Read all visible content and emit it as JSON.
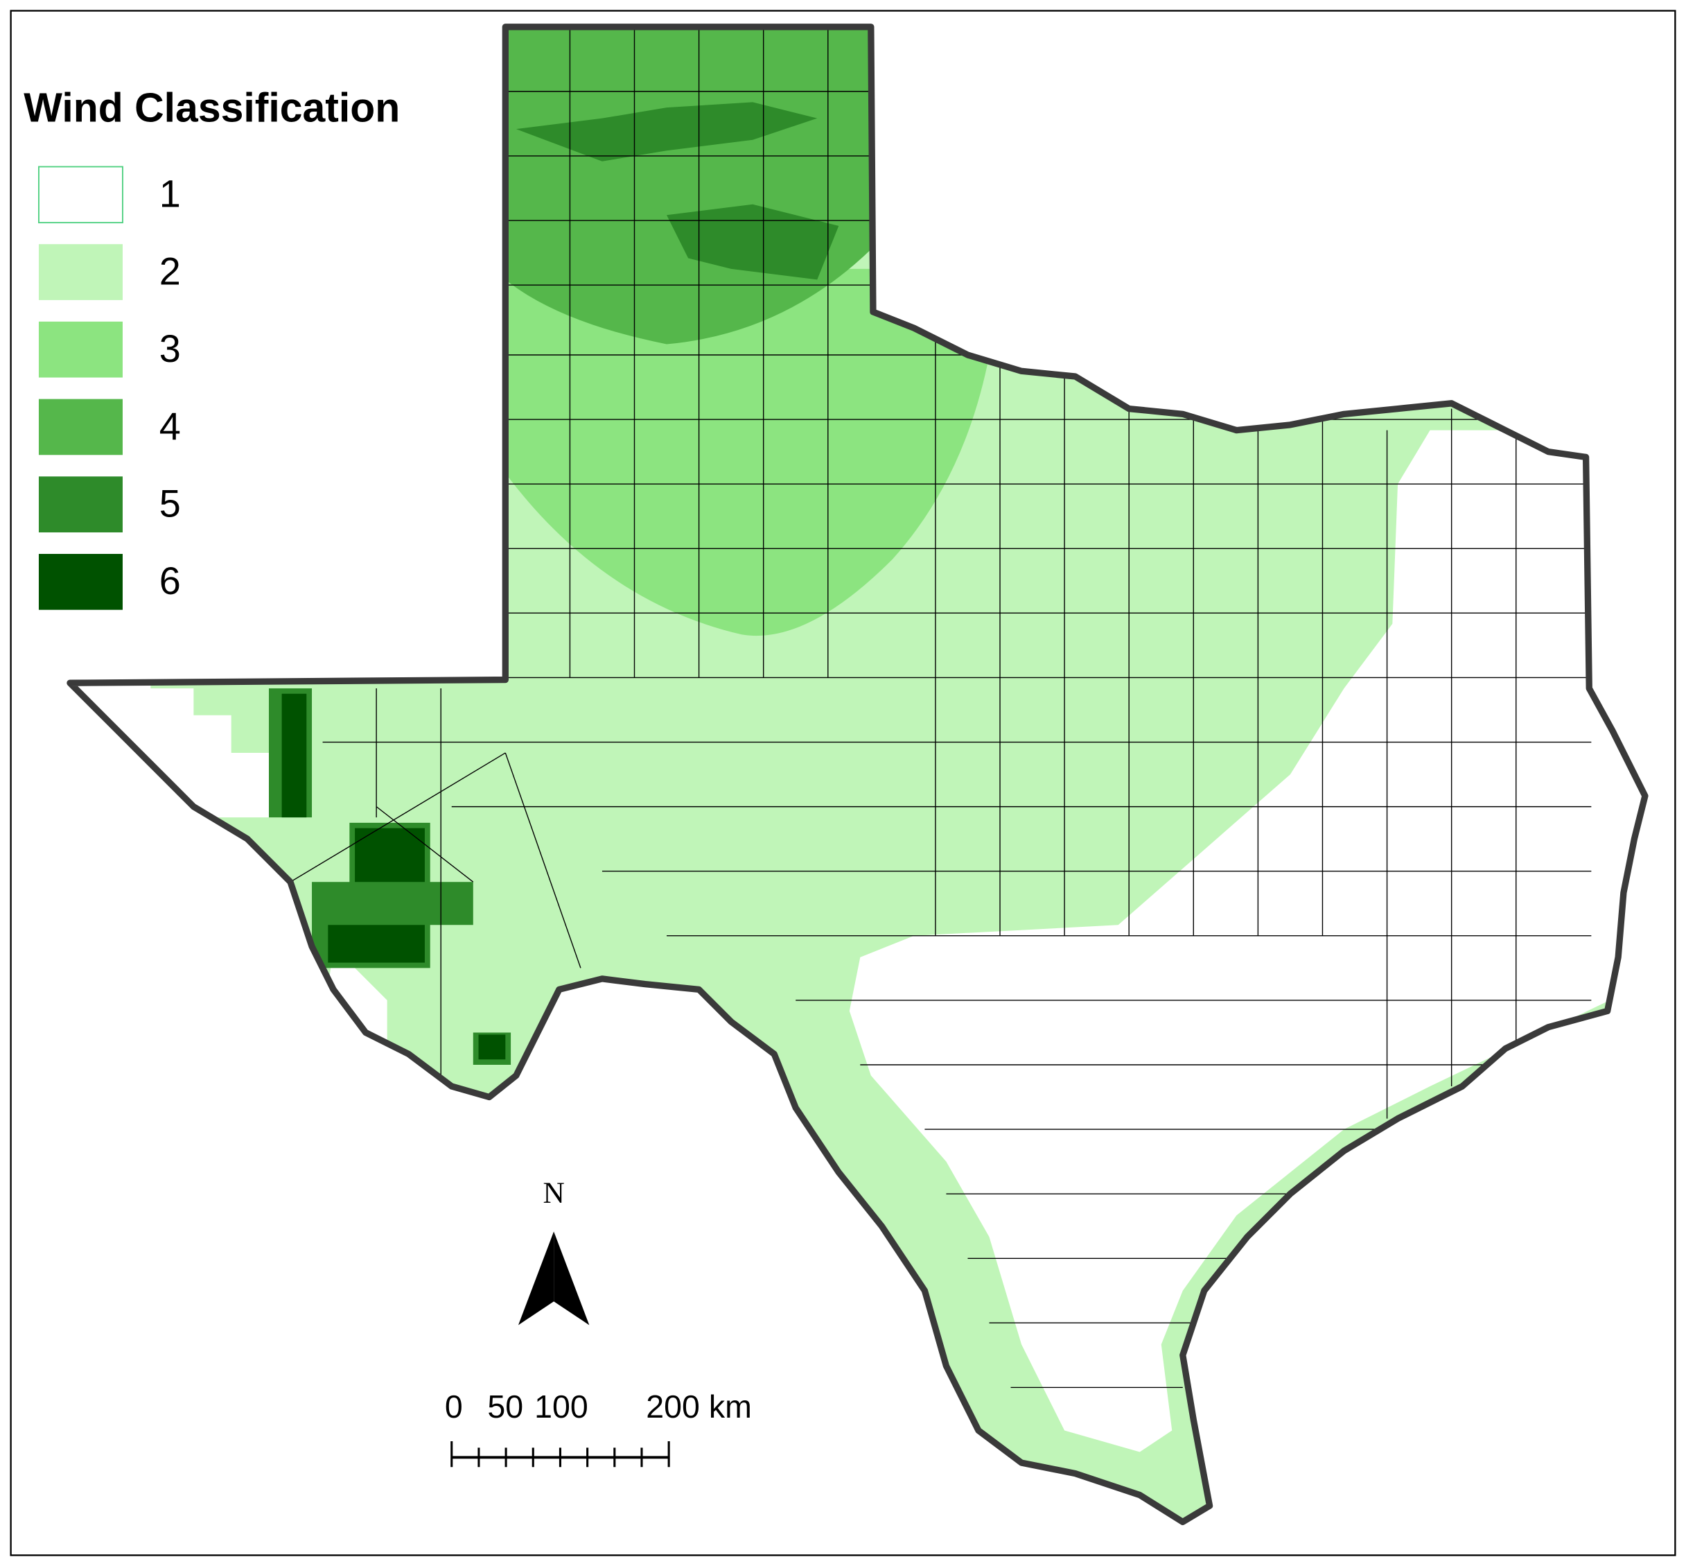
{
  "legend": {
    "title": "Wind Classification",
    "items": [
      {
        "label": "1",
        "color": "#ffffff"
      },
      {
        "label": "2",
        "color": "#c0f5b8"
      },
      {
        "label": "3",
        "color": "#8ce480"
      },
      {
        "label": "4",
        "color": "#55b74b"
      },
      {
        "label": "5",
        "color": "#2e8b2a"
      },
      {
        "label": "6",
        "color": "#005200"
      }
    ]
  },
  "north_arrow": {
    "label": "N"
  },
  "scale_bar": {
    "labels": [
      "0",
      "50",
      "100",
      "200 km"
    ]
  }
}
